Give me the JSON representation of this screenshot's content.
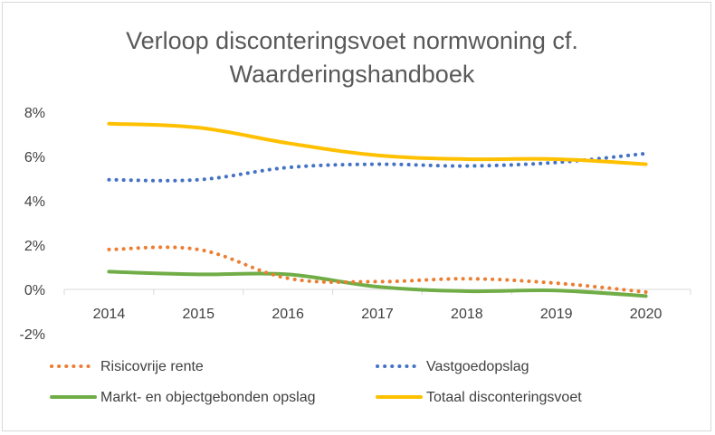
{
  "chart_data": {
    "type": "line",
    "title_lines": [
      "Verloop disconteringsvoet normwoning cf.",
      "Waarderingshandboek"
    ],
    "categories": [
      "2014",
      "2015",
      "2016",
      "2017",
      "2018",
      "2019",
      "2020"
    ],
    "y_ticks": [
      "8%",
      "6%",
      "4%",
      "2%",
      "0%",
      "-2%"
    ],
    "y_tick_values": [
      8,
      6,
      4,
      2,
      0,
      -2
    ],
    "ylim": [
      -2,
      8
    ],
    "y_unit": "%",
    "grid": false,
    "legend_position": "bottom",
    "series": [
      {
        "name": "Risicovrije rente",
        "color": "#ed7d31",
        "style": "dotted",
        "values": [
          1.8,
          1.8,
          0.5,
          0.35,
          0.48,
          0.28,
          -0.12
        ]
      },
      {
        "name": "Vastgoedopslag",
        "color": "#4472c4",
        "style": "dotted",
        "values": [
          4.95,
          4.95,
          5.5,
          5.65,
          5.57,
          5.73,
          6.13
        ]
      },
      {
        "name": "Markt- en objectgebonden opslag",
        "color": "#70ad47",
        "style": "solid",
        "values": [
          0.8,
          0.68,
          0.68,
          0.12,
          -0.08,
          -0.05,
          -0.3
        ]
      },
      {
        "name": "Totaal disconteringsvoet",
        "color": "#ffc000",
        "style": "solid",
        "values": [
          7.48,
          7.3,
          6.6,
          6.05,
          5.88,
          5.88,
          5.65
        ]
      }
    ]
  }
}
